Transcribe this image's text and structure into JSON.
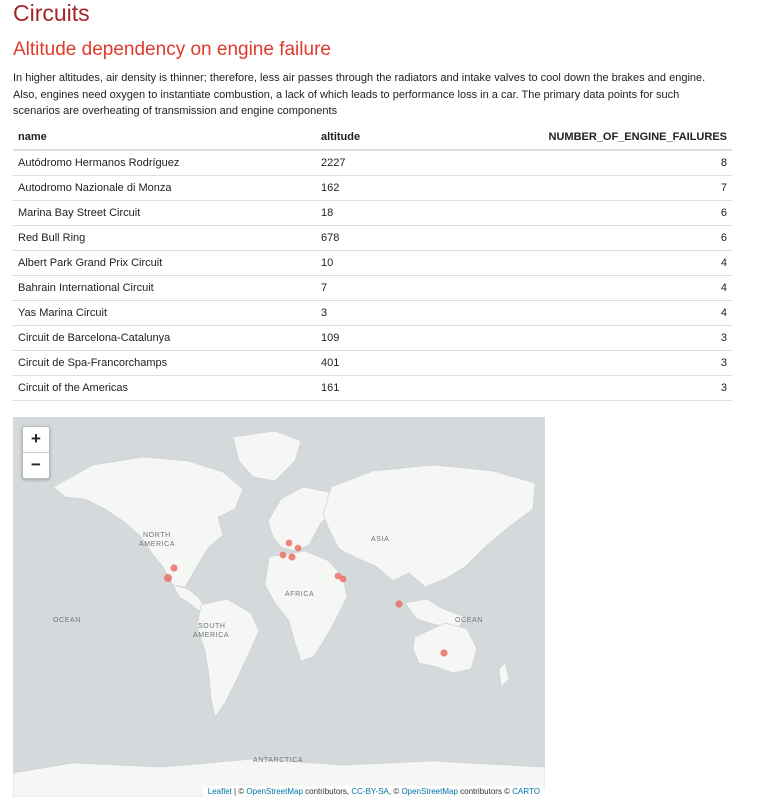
{
  "page": {
    "title": "Circuits",
    "section_title": "Altitude dependency on engine failure",
    "description": "In higher altitudes, air density is thinner; therefore, less air passes through the radiators and intake valves to cool down the brakes and engine. Also, engines need oxygen to instantiate combustion, a lack of which leads to performance loss in a car. The primary data points for such scenarios are overheating of transmission and engine components"
  },
  "table": {
    "headers": [
      "name",
      "altitude",
      "NUMBER_OF_ENGINE_FAILURES"
    ],
    "rows": [
      [
        "Autódromo Hermanos Rodríguez",
        "2227",
        "8"
      ],
      [
        "Autodromo Nazionale di Monza",
        "162",
        "7"
      ],
      [
        "Marina Bay Street Circuit",
        "18",
        "6"
      ],
      [
        "Red Bull Ring",
        "678",
        "6"
      ],
      [
        "Albert Park Grand Prix Circuit",
        "10",
        "4"
      ],
      [
        "Bahrain International Circuit",
        "7",
        "4"
      ],
      [
        "Yas Marina Circuit",
        "3",
        "4"
      ],
      [
        "Circuit de Barcelona-Catalunya",
        "109",
        "3"
      ],
      [
        "Circuit de Spa-Francorchamps",
        "401",
        "3"
      ],
      [
        "Circuit of the Americas",
        "161",
        "3"
      ]
    ]
  },
  "map": {
    "zoom_in": "+",
    "zoom_out": "−",
    "labels": {
      "north_america_1": "NORTH",
      "north_america_2": "AMERICA",
      "south_america_1": "SOUTH",
      "south_america_2": "AMERICA",
      "asia": "ASIA",
      "africa": "AFRICA",
      "antarctica": "ANTARCTICA",
      "ocean_left": "OCEAN",
      "ocean_right": "OCEAN"
    },
    "attribution": {
      "leaflet": "Leaflet",
      "sep1": " | © ",
      "osm1": "OpenStreetMap",
      "contributors1": " contributors, ",
      "ccbysa": "CC-BY-SA",
      "sep2": ", © ",
      "osm2": "OpenStreetMap",
      "contributors2": " contributors © ",
      "carto": "CARTO"
    },
    "colors": {
      "marker": "#e8695f",
      "land": "#f6f6f4",
      "water": "#d4dadc"
    }
  }
}
